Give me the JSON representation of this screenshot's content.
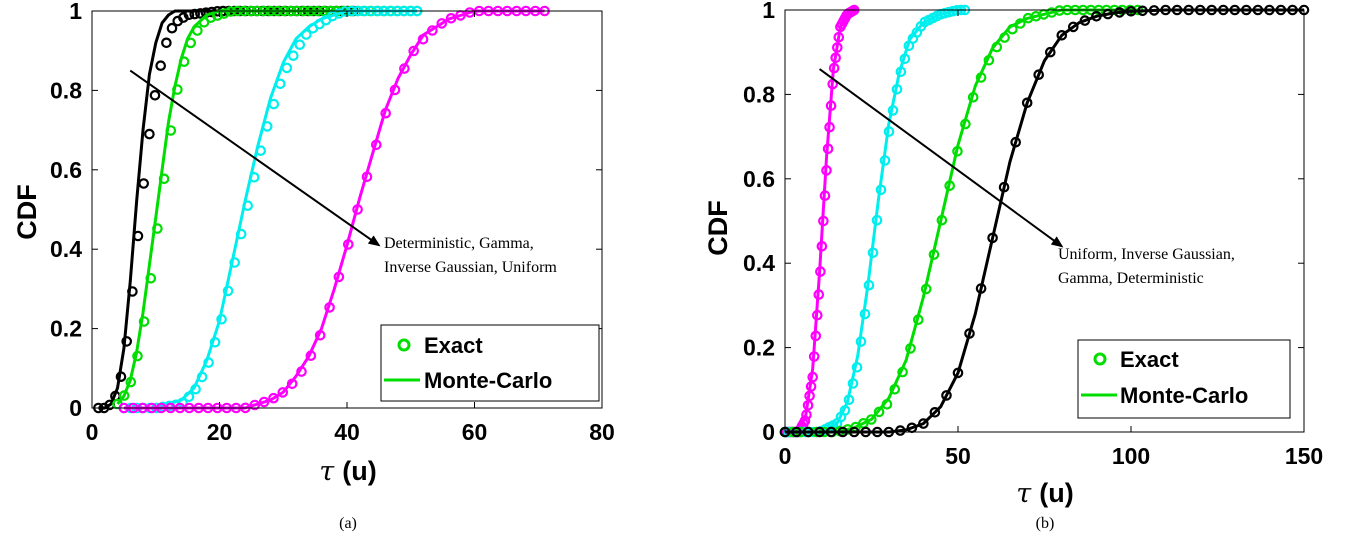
{
  "chart_data": [
    {
      "type": "line",
      "panel_label": "(a)",
      "xlabel_symbol": "τ",
      "xlabel_unit": "(u)",
      "ylabel": "CDF",
      "xlim": [
        0,
        80
      ],
      "ylim": [
        0,
        1
      ],
      "x_ticks": [
        "0",
        "20",
        "40",
        "60",
        "80"
      ],
      "y_ticks": [
        "0",
        "0.2",
        "0.4",
        "0.6",
        "0.8",
        "1"
      ],
      "grid": false,
      "legend_position": "bottom-right",
      "legend": {
        "exact_label": "Exact",
        "mc_label": "Monte-Carlo",
        "exact_color": "#00dd00",
        "mc_color": "#00dd00"
      },
      "annotation": {
        "lines": [
          "Deterministic, Gamma,",
          "Inverse Gaussian, Uniform"
        ],
        "arrow_from": [
          6,
          0.85
        ],
        "arrow_to": [
          45,
          0.41
        ]
      },
      "series": [
        {
          "color": "#000000",
          "x": [
            1,
            2,
            3,
            4,
            5,
            6,
            7,
            8,
            9,
            10,
            11,
            12,
            13,
            15,
            20,
            25,
            30,
            35,
            40,
            41
          ],
          "exact": [
            0,
            0,
            0.01,
            0.04,
            0.11,
            0.24,
            0.4,
            0.55,
            0.69,
            0.8,
            0.88,
            0.94,
            0.97,
            0.99,
            1,
            1,
            1,
            1,
            1,
            1
          ],
          "monte_carlo": [
            0,
            0,
            0.01,
            0.05,
            0.15,
            0.32,
            0.52,
            0.7,
            0.84,
            0.92,
            0.97,
            0.99,
            1,
            1,
            1,
            1,
            1,
            1,
            1,
            1
          ]
        },
        {
          "color": "#00dd00",
          "x": [
            4,
            5,
            6,
            7,
            8,
            9,
            10,
            11,
            12,
            13,
            14,
            15,
            16,
            18,
            20,
            22,
            25,
            30,
            40,
            50,
            51
          ],
          "exact": [
            0.01,
            0.03,
            0.06,
            0.12,
            0.2,
            0.3,
            0.42,
            0.54,
            0.66,
            0.77,
            0.85,
            0.9,
            0.94,
            0.98,
            0.99,
            1,
            1,
            1,
            1,
            1,
            1
          ],
          "monte_carlo": [
            0.01,
            0.03,
            0.07,
            0.14,
            0.24,
            0.36,
            0.48,
            0.6,
            0.72,
            0.81,
            0.88,
            0.93,
            0.96,
            0.99,
            1,
            1,
            1,
            1,
            1,
            1,
            1
          ]
        },
        {
          "color": "#00eeee",
          "x": [
            5,
            10,
            14,
            16,
            18,
            20,
            22,
            24,
            26,
            28,
            30,
            32,
            34,
            36,
            38,
            40,
            45,
            50,
            51
          ],
          "exact": [
            0,
            0,
            0.01,
            0.04,
            0.1,
            0.2,
            0.34,
            0.48,
            0.62,
            0.74,
            0.84,
            0.9,
            0.95,
            0.97,
            0.99,
            1,
            1,
            1,
            1
          ],
          "monte_carlo": [
            0,
            0,
            0.02,
            0.05,
            0.12,
            0.22,
            0.37,
            0.52,
            0.66,
            0.78,
            0.87,
            0.93,
            0.96,
            0.98,
            0.99,
            1,
            1,
            1,
            1
          ]
        },
        {
          "color": "#ff00ff",
          "x": [
            5,
            10,
            15,
            20,
            24,
            26,
            28,
            30,
            32,
            34,
            36,
            38,
            40,
            42,
            44,
            46,
            48,
            50,
            52,
            54,
            56,
            58,
            60,
            62,
            65,
            70,
            71
          ],
          "exact": [
            0,
            0,
            0,
            0,
            0,
            0.01,
            0.02,
            0.04,
            0.07,
            0.12,
            0.19,
            0.29,
            0.4,
            0.52,
            0.63,
            0.74,
            0.82,
            0.89,
            0.93,
            0.96,
            0.98,
            0.99,
            1,
            1,
            1,
            1,
            1
          ],
          "monte_carlo": [
            0,
            0,
            0,
            0,
            0,
            0.01,
            0.02,
            0.04,
            0.08,
            0.13,
            0.2,
            0.3,
            0.41,
            0.53,
            0.64,
            0.75,
            0.83,
            0.89,
            0.94,
            0.96,
            0.98,
            0.99,
            1,
            1,
            1,
            1,
            1
          ]
        }
      ]
    },
    {
      "type": "line",
      "panel_label": "(b)",
      "xlabel_symbol": "τ",
      "xlabel_unit": "(u)",
      "ylabel": "CDF",
      "xlim": [
        0,
        150
      ],
      "ylim": [
        0,
        1
      ],
      "x_ticks": [
        "0",
        "50",
        "100",
        "150"
      ],
      "y_ticks": [
        "0",
        "0.2",
        "0.4",
        "0.6",
        "0.8",
        "1"
      ],
      "grid": false,
      "legend_position": "bottom-right",
      "legend": {
        "exact_label": "Exact",
        "mc_label": "Monte-Carlo",
        "exact_color": "#00dd00",
        "mc_color": "#00dd00"
      },
      "annotation": {
        "lines": [
          "Uniform, Inverse Gaussian,",
          "Gamma, Deterministic"
        ],
        "arrow_from": [
          10,
          0.86
        ],
        "arrow_to": [
          80,
          0.44
        ]
      },
      "series": [
        {
          "color": "#ff00ff",
          "x": [
            0,
            4,
            6,
            8,
            10,
            12,
            14,
            16,
            18,
            20
          ],
          "exact": [
            0,
            0,
            0.03,
            0.13,
            0.35,
            0.62,
            0.85,
            0.96,
            0.99,
            1
          ],
          "monte_carlo": [
            0,
            0,
            0.04,
            0.15,
            0.38,
            0.65,
            0.86,
            0.96,
            0.99,
            1
          ]
        },
        {
          "color": "#00eeee",
          "x": [
            0,
            10,
            15,
            18,
            21,
            24,
            27,
            30,
            33,
            36,
            40,
            45,
            50,
            52
          ],
          "exact": [
            0,
            0,
            0.02,
            0.06,
            0.16,
            0.33,
            0.53,
            0.71,
            0.84,
            0.92,
            0.97,
            0.99,
            1,
            1
          ],
          "monte_carlo": [
            0,
            0,
            0.02,
            0.07,
            0.18,
            0.35,
            0.55,
            0.73,
            0.85,
            0.93,
            0.97,
            0.99,
            1,
            1
          ]
        },
        {
          "color": "#00dd00",
          "x": [
            0,
            15,
            20,
            25,
            30,
            35,
            40,
            45,
            50,
            55,
            60,
            65,
            70,
            75,
            80,
            90,
            102
          ],
          "exact": [
            0,
            0,
            0.01,
            0.03,
            0.07,
            0.16,
            0.31,
            0.49,
            0.67,
            0.81,
            0.9,
            0.95,
            0.98,
            0.99,
            1,
            1,
            1
          ],
          "monte_carlo": [
            0,
            0,
            0.01,
            0.03,
            0.08,
            0.17,
            0.32,
            0.5,
            0.68,
            0.82,
            0.91,
            0.96,
            0.98,
            0.99,
            1,
            1,
            1
          ]
        },
        {
          "color": "#000000",
          "x": [
            0,
            30,
            35,
            40,
            45,
            50,
            55,
            60,
            65,
            70,
            75,
            80,
            85,
            90,
            95,
            100,
            110,
            120,
            130,
            150
          ],
          "exact": [
            0,
            0,
            0.005,
            0.02,
            0.06,
            0.14,
            0.28,
            0.46,
            0.64,
            0.78,
            0.88,
            0.94,
            0.97,
            0.985,
            0.993,
            0.997,
            1,
            1,
            1,
            1
          ],
          "monte_carlo": [
            0,
            0,
            0.005,
            0.02,
            0.06,
            0.14,
            0.28,
            0.46,
            0.64,
            0.78,
            0.88,
            0.94,
            0.97,
            0.985,
            0.993,
            0.997,
            1,
            1,
            1,
            1
          ]
        }
      ]
    }
  ]
}
